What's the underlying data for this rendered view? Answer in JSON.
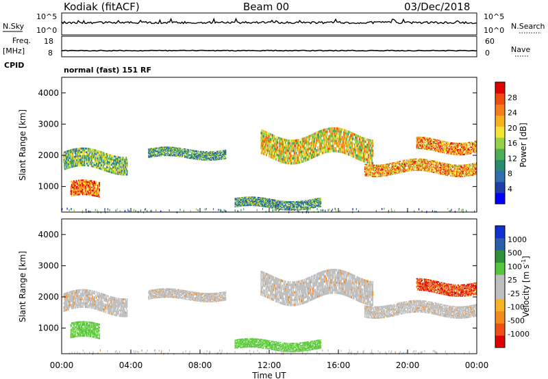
{
  "header": {
    "station": "Kodiak (fitACF)",
    "beam": "Beam 00",
    "date": "03/Dec/2018"
  },
  "status_panel": {
    "nsky_label": "N.Sky",
    "nsearch_label": "N.Search",
    "freq_label": "Freq.",
    "freq_unit": "[MHz]",
    "nave_label": "Nave",
    "cpid_label": "CPID",
    "cpid_text": "normal (fast) 151 RF",
    "noise_ticks_left": [
      "10^5",
      "10^0"
    ],
    "noise_ticks_right": [
      "10^5",
      "10^0"
    ],
    "freq_ticks": [
      "18",
      "8"
    ],
    "nave_ticks": [
      "60",
      "0"
    ]
  },
  "colors": {
    "power_scale": [
      "#0000ff",
      "#1e3fa8",
      "#2f6fae",
      "#2a8a6c",
      "#4fae55",
      "#98d04a",
      "#f3e531",
      "#f6b21f",
      "#f57e18",
      "#ef4c10",
      "#e00000"
    ],
    "velocity_scale": [
      "#e00000",
      "#f04e14",
      "#f58a1c",
      "#f7b324",
      "#bfbfbf",
      "#bfbfbf",
      "#54c43a",
      "#2f8f3a",
      "#2a5fae",
      "#1030d0"
    ]
  },
  "chart_data": [
    {
      "type": "heatmap",
      "name": "power",
      "ylabel": "Slant Range [km]",
      "colorbar_label": "Power [dB]",
      "colorbar_ticks": [
        "4",
        "8",
        "12",
        "16",
        "20",
        "24",
        "28"
      ],
      "ylim": [
        180,
        4500
      ],
      "yticks": [
        "1000",
        "2000",
        "3000",
        "4000"
      ],
      "xlim_hours": [
        0,
        24
      ],
      "echo_regions": [
        {
          "t0": 0.1,
          "t1": 3.8,
          "r0": 1500,
          "r1": 2100,
          "level": 0.45
        },
        {
          "t0": 0.5,
          "t1": 2.2,
          "r0": 600,
          "r1": 1100,
          "level": 0.8
        },
        {
          "t0": 5.0,
          "t1": 9.5,
          "r0": 1900,
          "r1": 2200,
          "level": 0.35
        },
        {
          "t0": 11.5,
          "t1": 18.0,
          "r0": 1900,
          "r1": 2700,
          "level": 0.6
        },
        {
          "t0": 17.5,
          "t1": 24.0,
          "r0": 1400,
          "r1": 1800,
          "level": 0.7
        },
        {
          "t0": 20.5,
          "t1": 24.0,
          "r0": 2100,
          "r1": 2500,
          "level": 0.75
        },
        {
          "t0": 10.0,
          "t1": 15.0,
          "r0": 300,
          "r1": 600,
          "level": 0.35
        }
      ]
    },
    {
      "type": "heatmap",
      "name": "velocity",
      "ylabel": "Slant Range [km]",
      "colorbar_label": "Velocity [m s^-1]",
      "colorbar_ticks": [
        "1000",
        "500",
        "100",
        "25",
        "-25",
        "-100",
        "-500",
        "-1000"
      ],
      "ylim": [
        180,
        4500
      ],
      "yticks": [
        "1000",
        "2000",
        "3000",
        "4000"
      ],
      "xlabel": "Time UT",
      "xticks": [
        "00:00",
        "04:00",
        "08:00",
        "12:00",
        "16:00",
        "20:00",
        "00:00"
      ],
      "xlim_hours": [
        0,
        24
      ],
      "echo_regions": [
        {
          "t0": 0.1,
          "t1": 3.8,
          "r0": 1500,
          "r1": 2100,
          "vel": 0
        },
        {
          "t0": 0.5,
          "t1": 2.2,
          "r0": 600,
          "r1": 1100,
          "vel": 200
        },
        {
          "t0": 5.0,
          "t1": 9.5,
          "r0": 1900,
          "r1": 2200,
          "vel": 0
        },
        {
          "t0": 11.5,
          "t1": 18.0,
          "r0": 1900,
          "r1": 2700,
          "vel": 0
        },
        {
          "t0": 17.5,
          "t1": 24.0,
          "r0": 1400,
          "r1": 1800,
          "vel": 0
        },
        {
          "t0": 20.5,
          "t1": 24.0,
          "r0": 2100,
          "r1": 2500,
          "vel": -300
        },
        {
          "t0": 10.0,
          "t1": 15.0,
          "r0": 300,
          "r1": 600,
          "vel": 200
        }
      ]
    }
  ]
}
